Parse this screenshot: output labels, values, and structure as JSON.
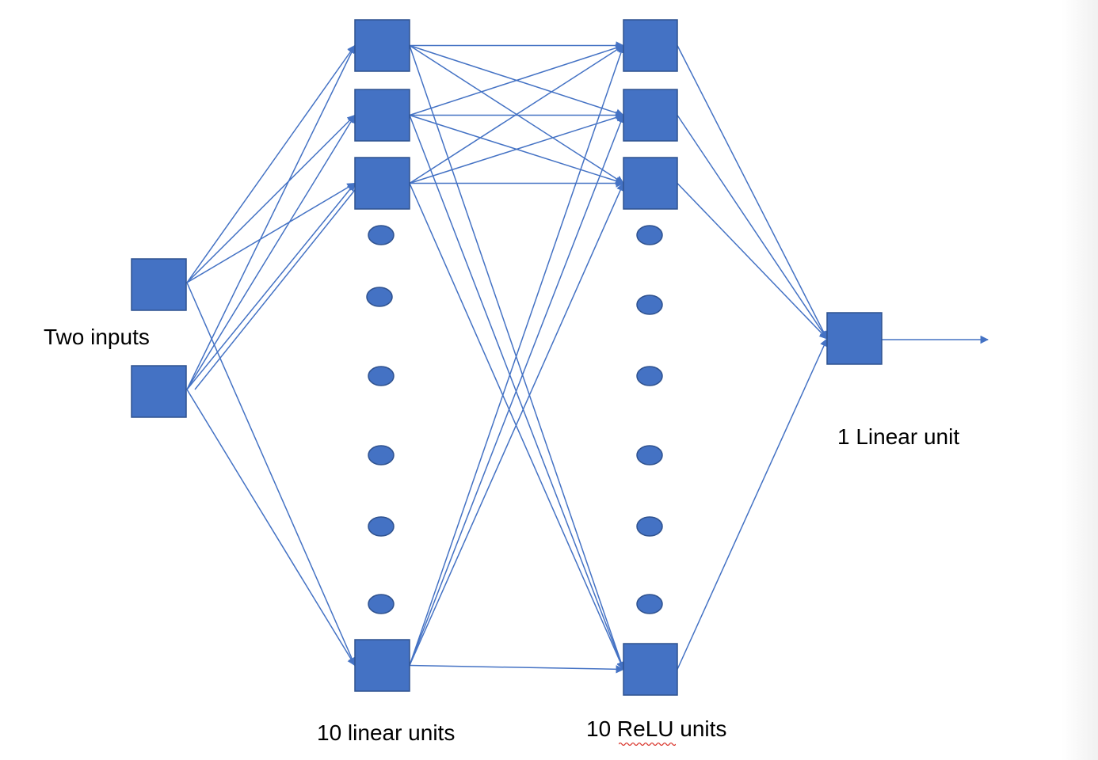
{
  "labels": {
    "inputs": "Two inputs",
    "linear_layer": "10 linear units",
    "relu_layer": "10 ReLU units",
    "output": "1 Linear unit"
  },
  "colors": {
    "node": "#4472c4",
    "node_border": "#2f528f",
    "edge": "#4472c4",
    "spellcheck": "#d9342b"
  },
  "layers": {
    "inputs": {
      "shown_units": 2
    },
    "linear": {
      "units": 10,
      "shown_units": 4,
      "ellipsis_dots": 6
    },
    "relu": {
      "units": 10,
      "shown_units": 4,
      "ellipsis_dots": 6
    },
    "output": {
      "units": 1
    }
  }
}
